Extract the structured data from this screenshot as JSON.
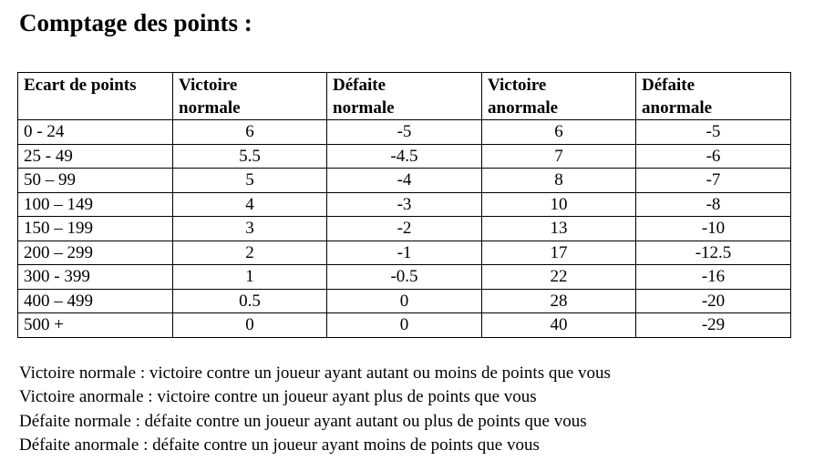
{
  "title": "Comptage des points :",
  "table": {
    "headers": [
      [
        "Ecart de points"
      ],
      [
        "Victoire",
        "normale"
      ],
      [
        "Défaite",
        "normale"
      ],
      [
        "Victoire",
        "anormale"
      ],
      [
        "Défaite",
        "anormale"
      ]
    ],
    "rows": [
      [
        "0 - 24",
        "6",
        "-5",
        "6",
        "-5"
      ],
      [
        "25 - 49",
        "5.5",
        "-4.5",
        "7",
        "-6"
      ],
      [
        "50 – 99",
        "5",
        "-4",
        "8",
        "-7"
      ],
      [
        "100 – 149",
        "4",
        "-3",
        "10",
        "-8"
      ],
      [
        "150 – 199",
        "3",
        "-2",
        "13",
        "-10"
      ],
      [
        "200 – 299",
        "2",
        "-1",
        "17",
        "-12.5"
      ],
      [
        "300 - 399",
        "1",
        "-0.5",
        "22",
        "-16"
      ],
      [
        "400 – 499",
        "0.5",
        "0",
        "28",
        "-20"
      ],
      [
        "500 +",
        "0",
        "0",
        "40",
        "-29"
      ]
    ]
  },
  "legend": [
    "Victoire normale : victoire contre un joueur ayant autant ou moins de points que vous",
    "Victoire anormale : victoire contre un joueur ayant plus de points que vous",
    "Défaite normale : défaite contre un joueur ayant autant ou plus de points que vous",
    "Défaite anormale : défaite contre un joueur ayant moins de points que vous"
  ]
}
